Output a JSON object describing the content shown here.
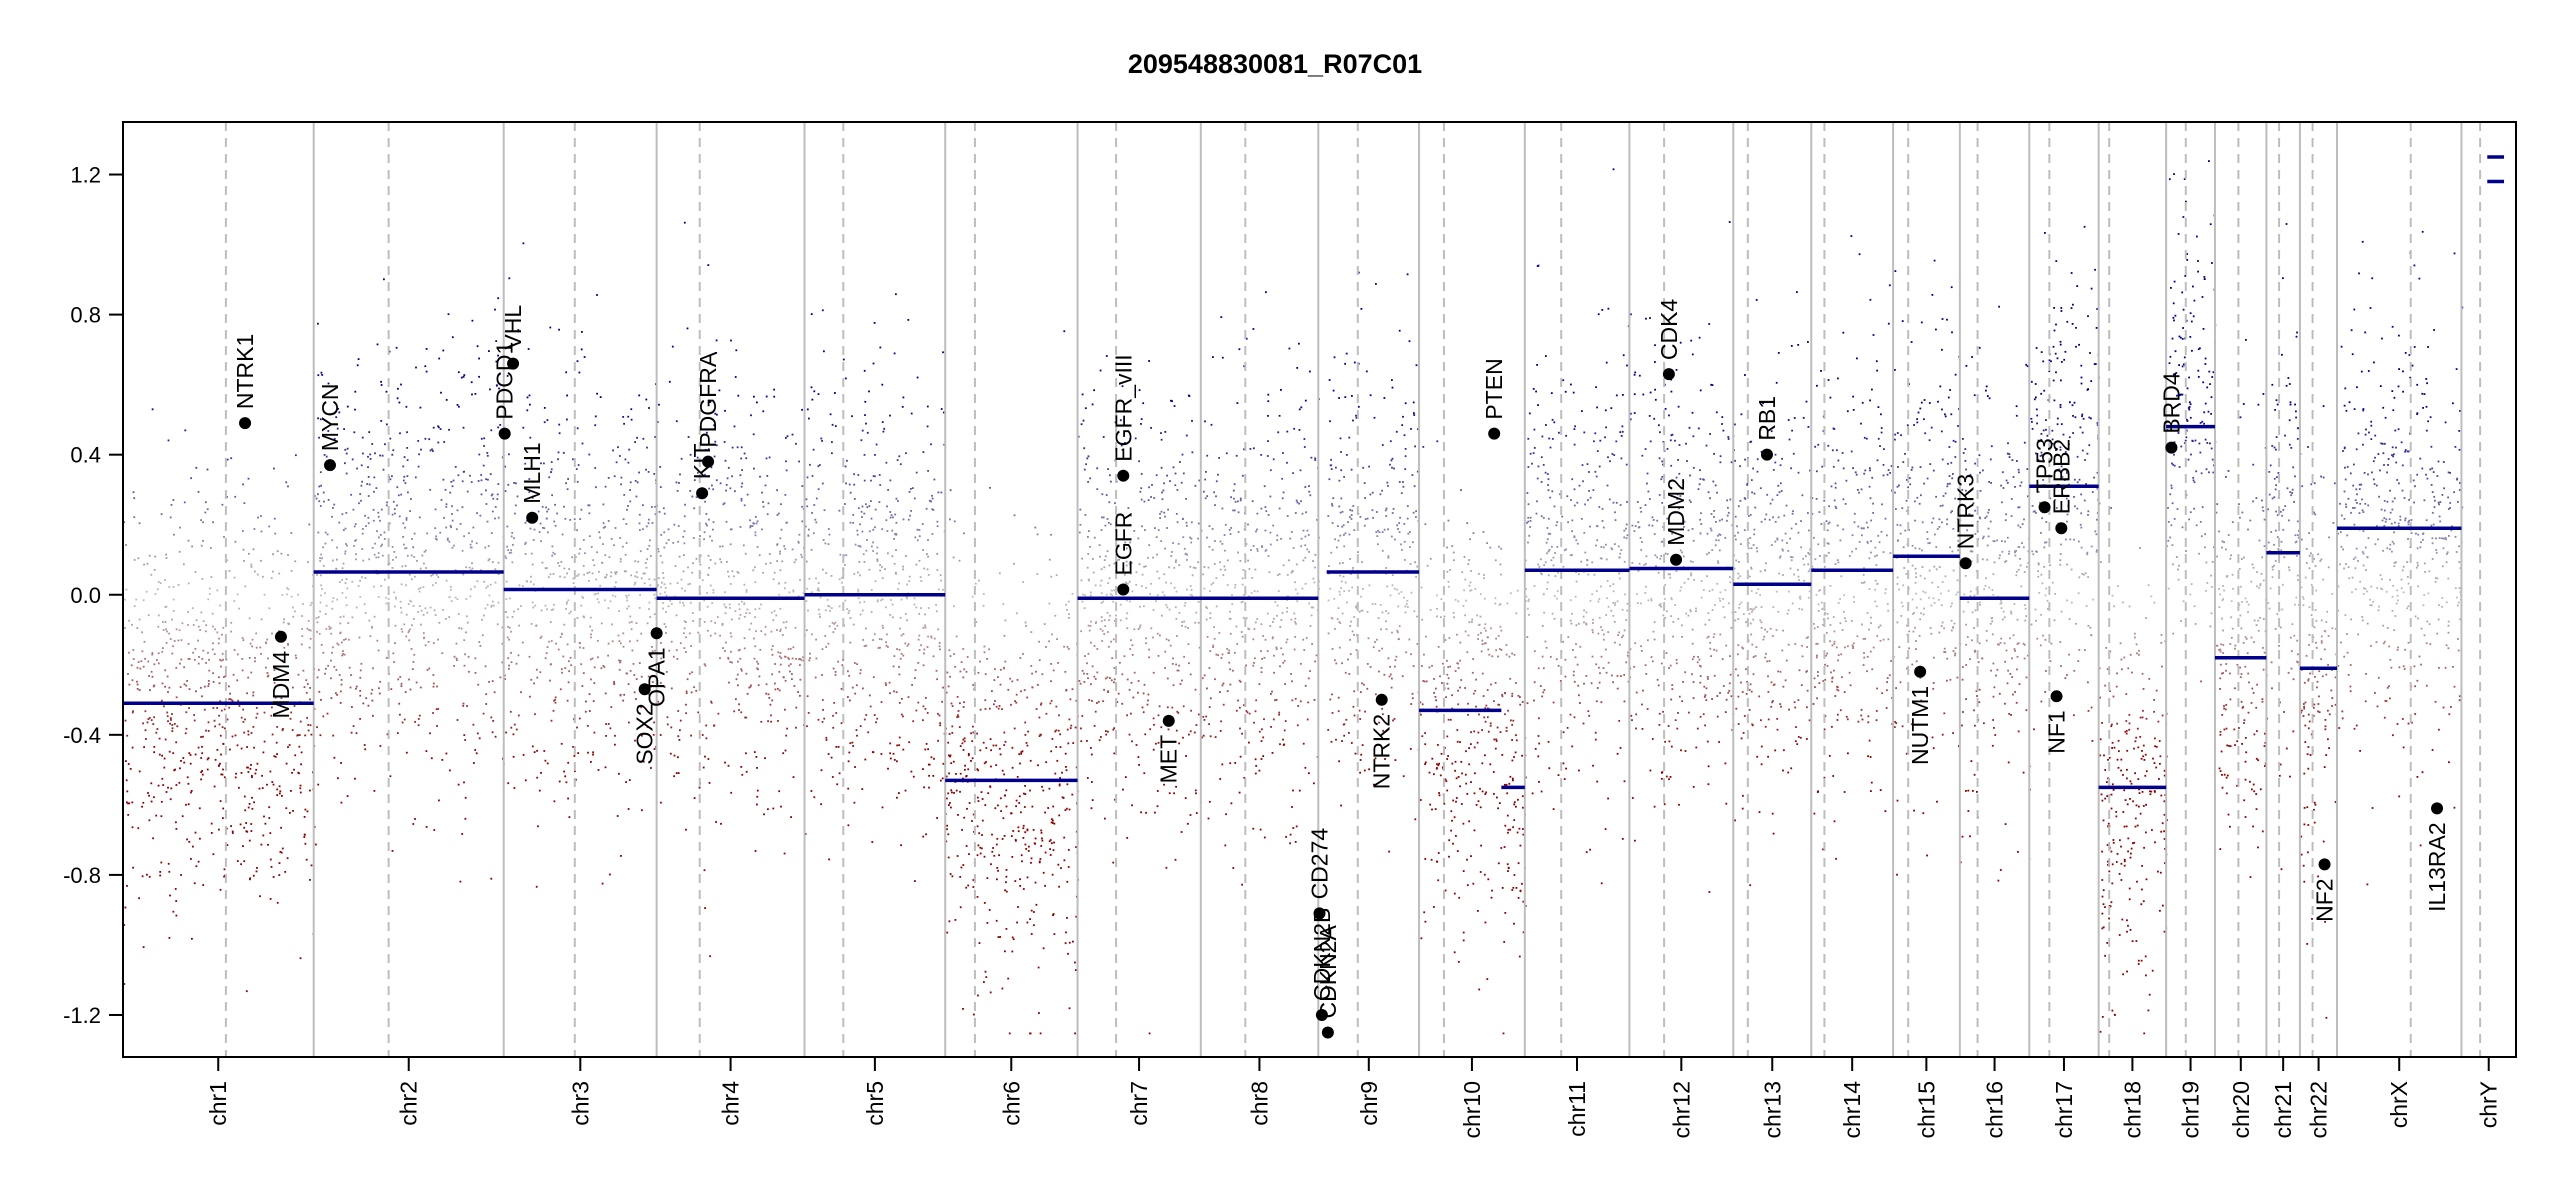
{
  "chart_data": {
    "type": "scatter",
    "title": "209548830081_R07C01",
    "xlabel": "",
    "ylabel": "",
    "ylim": [
      -1.32,
      1.35
    ],
    "yticks": [
      -1.2,
      -0.8,
      -0.4,
      0.0,
      0.4,
      0.8,
      1.2
    ],
    "ytick_labels": [
      "-1.2",
      "-0.8",
      "-0.4",
      "0.0",
      "0.4",
      "0.8",
      "1.2"
    ],
    "grid": false,
    "colors": {
      "gain": "#00008b",
      "loss": "#8b0000",
      "neutral": "#bdbdbd",
      "segment": "#00008b",
      "divider": "#bdbdbd"
    },
    "chromosomes": [
      {
        "name": "chr1",
        "start": 0,
        "end": 0.0797,
        "center": 0.0398
      },
      {
        "name": "chr2",
        "start": 0.0797,
        "end": 0.1591,
        "center": 0.1194
      },
      {
        "name": "chr3",
        "start": 0.1591,
        "end": 0.223,
        "center": 0.1911
      },
      {
        "name": "chr4",
        "start": 0.223,
        "end": 0.2848,
        "center": 0.2539
      },
      {
        "name": "chr5",
        "start": 0.2848,
        "end": 0.3436,
        "center": 0.3142
      },
      {
        "name": "chr6",
        "start": 0.3436,
        "end": 0.3989,
        "center": 0.3712
      },
      {
        "name": "chr7",
        "start": 0.3989,
        "end": 0.4504,
        "center": 0.4246
      },
      {
        "name": "chr8",
        "start": 0.4504,
        "end": 0.4995,
        "center": 0.4749
      },
      {
        "name": "chr9",
        "start": 0.4995,
        "end": 0.5416,
        "center": 0.5206
      },
      {
        "name": "chr10",
        "start": 0.5416,
        "end": 0.5858,
        "center": 0.5637
      },
      {
        "name": "chr11",
        "start": 0.5858,
        "end": 0.6295,
        "center": 0.6076
      },
      {
        "name": "chr12",
        "start": 0.6295,
        "end": 0.6729,
        "center": 0.6512
      },
      {
        "name": "chr13",
        "start": 0.6729,
        "end": 0.7055,
        "center": 0.6892
      },
      {
        "name": "chr14",
        "start": 0.7055,
        "end": 0.7397,
        "center": 0.7226
      },
      {
        "name": "chr15",
        "start": 0.7397,
        "end": 0.7676,
        "center": 0.7536
      },
      {
        "name": "chr16",
        "start": 0.7676,
        "end": 0.7966,
        "center": 0.7821
      },
      {
        "name": "chr17",
        "start": 0.7966,
        "end": 0.8256,
        "center": 0.8111
      },
      {
        "name": "chr18",
        "start": 0.8256,
        "end": 0.8538,
        "center": 0.8397
      },
      {
        "name": "chr19",
        "start": 0.8538,
        "end": 0.8742,
        "center": 0.864
      },
      {
        "name": "chr20",
        "start": 0.8742,
        "end": 0.8957,
        "center": 0.885
      },
      {
        "name": "chr21",
        "start": 0.8957,
        "end": 0.9097,
        "center": 0.9027
      },
      {
        "name": "chr22",
        "start": 0.9097,
        "end": 0.9252,
        "center": 0.9175
      },
      {
        "name": "chrX",
        "start": 0.9252,
        "end": 0.9772,
        "center": 0.9512
      },
      {
        "name": "chrY",
        "start": 0.9772,
        "end": 1.0,
        "center": 0.9886
      }
    ],
    "centromeres": [
      0.043,
      0.111,
      0.1888,
      0.241,
      0.301,
      0.356,
      0.415,
      0.469,
      0.516,
      0.552,
      0.601,
      0.644,
      0.679,
      0.711,
      0.746,
      0.775,
      0.805,
      0.83,
      0.862,
      0.884,
      0.901,
      0.915,
      0.956,
      0.985
    ],
    "segments": [
      {
        "x0": 0,
        "x1": 0.0797,
        "y": -0.31
      },
      {
        "x0": 0.0797,
        "x1": 0.1591,
        "y": 0.065
      },
      {
        "x0": 0.1591,
        "x1": 0.223,
        "y": 0.015
      },
      {
        "x0": 0.223,
        "x1": 0.2848,
        "y": -0.01
      },
      {
        "x0": 0.2848,
        "x1": 0.3436,
        "y": 0.0
      },
      {
        "x0": 0.3436,
        "x1": 0.3989,
        "y": -0.53
      },
      {
        "x0": 0.3989,
        "x1": 0.4995,
        "y": -0.01
      },
      {
        "x0": 0.503,
        "x1": 0.5416,
        "y": 0.065
      },
      {
        "x0": 0.5416,
        "x1": 0.576,
        "y": -0.33
      },
      {
        "x0": 0.576,
        "x1": 0.5858,
        "y": -0.55
      },
      {
        "x0": 0.5858,
        "x1": 0.6295,
        "y": 0.07
      },
      {
        "x0": 0.6295,
        "x1": 0.6729,
        "y": 0.075
      },
      {
        "x0": 0.6729,
        "x1": 0.7055,
        "y": 0.03
      },
      {
        "x0": 0.7055,
        "x1": 0.7397,
        "y": 0.07
      },
      {
        "x0": 0.7397,
        "x1": 0.7676,
        "y": 0.11
      },
      {
        "x0": 0.7676,
        "x1": 0.7966,
        "y": -0.01
      },
      {
        "x0": 0.7966,
        "x1": 0.8256,
        "y": 0.31
      },
      {
        "x0": 0.8256,
        "x1": 0.8538,
        "y": -0.55
      },
      {
        "x0": 0.8538,
        "x1": 0.8742,
        "y": 0.48
      },
      {
        "x0": 0.8742,
        "x1": 0.8957,
        "y": -0.18
      },
      {
        "x0": 0.8957,
        "x1": 0.9097,
        "y": 0.12
      },
      {
        "x0": 0.9097,
        "x1": 0.9252,
        "y": -0.21
      },
      {
        "x0": 0.9252,
        "x1": 0.9772,
        "y": 0.19
      },
      {
        "x0": 0.988,
        "x1": 0.995,
        "y": 1.25
      },
      {
        "x0": 0.988,
        "x1": 0.995,
        "y": 1.18
      }
    ],
    "genes": [
      {
        "name": "NTRK1",
        "x": 0.051,
        "y": 0.49,
        "side": "above"
      },
      {
        "name": "MDM4",
        "x": 0.066,
        "y": -0.12,
        "side": "below"
      },
      {
        "name": "MYCN",
        "x": 0.0865,
        "y": 0.37,
        "side": "above"
      },
      {
        "name": "PDCD1",
        "x": 0.1595,
        "y": 0.46,
        "side": "above"
      },
      {
        "name": "VHL",
        "x": 0.163,
        "y": 0.66,
        "side": "above"
      },
      {
        "name": "MLH1",
        "x": 0.171,
        "y": 0.22,
        "side": "above"
      },
      {
        "name": "SOX2",
        "x": 0.218,
        "y": -0.27,
        "side": "below"
      },
      {
        "name": "OPA1",
        "x": 0.223,
        "y": -0.11,
        "side": "below"
      },
      {
        "name": "KIT",
        "x": 0.242,
        "y": 0.29,
        "side": "above"
      },
      {
        "name": "PDGFRA",
        "x": 0.2445,
        "y": 0.38,
        "side": "above"
      },
      {
        "name": "EGFR",
        "x": 0.418,
        "y": 0.015,
        "side": "above"
      },
      {
        "name": "EGFR_vIII",
        "x": 0.418,
        "y": 0.34,
        "side": "above"
      },
      {
        "name": "MET",
        "x": 0.437,
        "y": -0.36,
        "side": "below"
      },
      {
        "name": "CD274",
        "x": 0.5,
        "y": -0.91,
        "side": "above"
      },
      {
        "name": "CDKN2B",
        "x": 0.501,
        "y": -1.2,
        "side": "above"
      },
      {
        "name": "CDKN2A",
        "x": 0.5035,
        "y": -1.25,
        "side": "above"
      },
      {
        "name": "NTRK2",
        "x": 0.526,
        "y": -0.3,
        "side": "below"
      },
      {
        "name": "PTEN",
        "x": 0.573,
        "y": 0.46,
        "side": "above"
      },
      {
        "name": "CDK4",
        "x": 0.646,
        "y": 0.63,
        "side": "above"
      },
      {
        "name": "MDM2",
        "x": 0.649,
        "y": 0.1,
        "side": "above"
      },
      {
        "name": "RB1",
        "x": 0.687,
        "y": 0.4,
        "side": "above"
      },
      {
        "name": "NUTM1",
        "x": 0.751,
        "y": -0.22,
        "side": "below"
      },
      {
        "name": "NTRK3",
        "x": 0.77,
        "y": 0.09,
        "side": "above"
      },
      {
        "name": "TP53",
        "x": 0.803,
        "y": 0.25,
        "side": "above"
      },
      {
        "name": "ERBB2",
        "x": 0.81,
        "y": 0.19,
        "side": "above"
      },
      {
        "name": "NF1",
        "x": 0.808,
        "y": -0.29,
        "side": "below"
      },
      {
        "name": "BRD4",
        "x": 0.856,
        "y": 0.42,
        "side": "above"
      },
      {
        "name": "NF2",
        "x": 0.92,
        "y": -0.77,
        "side": "below"
      },
      {
        "name": "IL13RA2",
        "x": 0.967,
        "y": -0.61,
        "side": "below"
      }
    ]
  }
}
